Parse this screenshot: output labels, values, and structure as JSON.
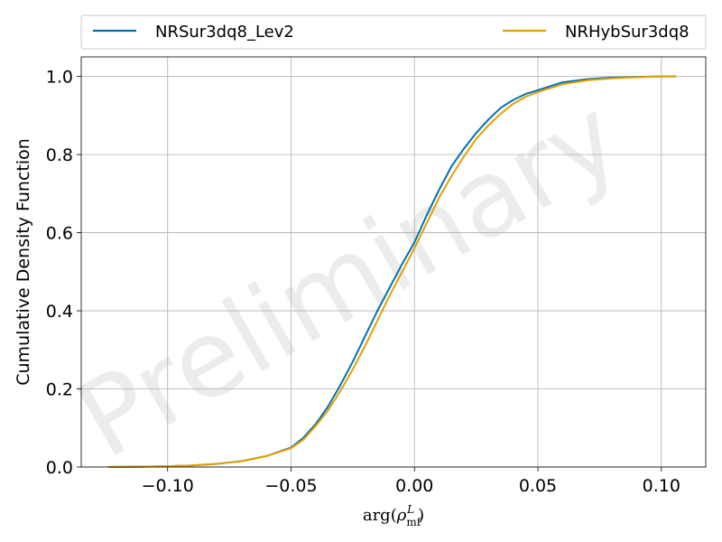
{
  "chart_data": {
    "type": "line",
    "title": "",
    "xlabel": "arg(ρ_mf^L)",
    "ylabel": "Cumulative Density Function",
    "xlim": [
      -0.135,
      0.118
    ],
    "ylim": [
      0.0,
      1.05
    ],
    "xticks": [
      -0.1,
      -0.05,
      0.0,
      0.05,
      0.1
    ],
    "xtick_labels": [
      "−0.10",
      "−0.05",
      "0.00",
      "0.05",
      "0.10"
    ],
    "yticks": [
      0.0,
      0.2,
      0.4,
      0.6,
      0.8,
      1.0
    ],
    "ytick_labels": [
      "0.0",
      "0.2",
      "0.4",
      "0.6",
      "0.8",
      "1.0"
    ],
    "grid": true,
    "legend_position": "top",
    "watermark": "Preliminary",
    "series": [
      {
        "name": "NRSur3dq8_Lev2",
        "color": "#0072b2",
        "x": [
          -0.124,
          -0.11,
          -0.1,
          -0.09,
          -0.08,
          -0.07,
          -0.06,
          -0.05,
          -0.045,
          -0.04,
          -0.035,
          -0.03,
          -0.025,
          -0.02,
          -0.015,
          -0.01,
          -0.005,
          0.0,
          0.005,
          0.01,
          0.015,
          0.02,
          0.025,
          0.03,
          0.035,
          0.04,
          0.045,
          0.05,
          0.055,
          0.06,
          0.07,
          0.08,
          0.09,
          0.1,
          0.106
        ],
        "y": [
          0.0,
          0.001,
          0.002,
          0.004,
          0.008,
          0.015,
          0.028,
          0.05,
          0.075,
          0.11,
          0.155,
          0.21,
          0.27,
          0.335,
          0.4,
          0.46,
          0.52,
          0.575,
          0.645,
          0.71,
          0.77,
          0.815,
          0.855,
          0.89,
          0.92,
          0.94,
          0.955,
          0.965,
          0.975,
          0.985,
          0.993,
          0.997,
          0.999,
          1.0,
          1.0
        ]
      },
      {
        "name": "NRHybSur3dq8",
        "color": "#e69f00",
        "x": [
          -0.124,
          -0.11,
          -0.1,
          -0.09,
          -0.08,
          -0.07,
          -0.06,
          -0.05,
          -0.045,
          -0.04,
          -0.035,
          -0.03,
          -0.025,
          -0.02,
          -0.015,
          -0.01,
          -0.005,
          0.0,
          0.005,
          0.01,
          0.015,
          0.02,
          0.025,
          0.03,
          0.035,
          0.04,
          0.045,
          0.05,
          0.055,
          0.06,
          0.07,
          0.08,
          0.09,
          0.1,
          0.106
        ],
        "y": [
          0.0,
          0.001,
          0.002,
          0.004,
          0.008,
          0.015,
          0.028,
          0.048,
          0.07,
          0.105,
          0.145,
          0.195,
          0.25,
          0.31,
          0.375,
          0.44,
          0.5,
          0.56,
          0.625,
          0.69,
          0.745,
          0.795,
          0.84,
          0.875,
          0.905,
          0.93,
          0.948,
          0.96,
          0.97,
          0.98,
          0.99,
          0.995,
          0.998,
          1.0,
          1.0
        ]
      }
    ]
  }
}
